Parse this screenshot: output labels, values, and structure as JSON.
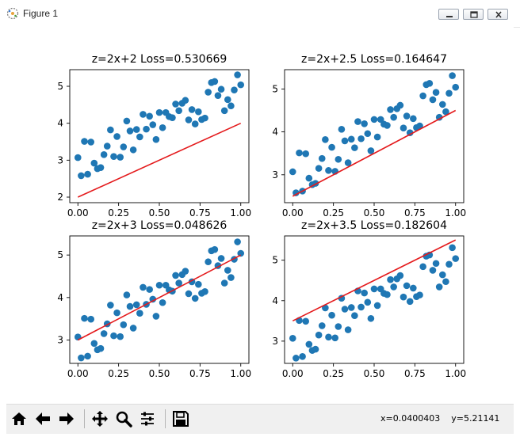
{
  "window": {
    "title": "Figure 1"
  },
  "toolbar": {
    "buttons": [
      {
        "name": "home-icon"
      },
      {
        "name": "back-arrow-icon"
      },
      {
        "name": "forward-arrow-icon"
      },
      {
        "name": "pan-icon"
      },
      {
        "name": "zoom-icon"
      },
      {
        "name": "subplots-config-icon"
      },
      {
        "name": "save-icon"
      }
    ],
    "x_readout": "x=0.0400403",
    "y_readout": "y=5.21141"
  },
  "colors": {
    "scatter": "#1f77b4",
    "line": "#e41a1c"
  },
  "chart_data": [
    {
      "type": "scatter",
      "title": "z=2x+2 Loss=0.530669",
      "xlabel": "",
      "ylabel": "",
      "xlim": [
        -0.05,
        1.05
      ],
      "ylim": [
        1.85,
        5.45
      ],
      "xticks": [
        "0.00",
        "0.25",
        "0.50",
        "0.75",
        "1.00"
      ],
      "yticks": [
        "2",
        "3",
        "4",
        "5"
      ],
      "x": [
        0.0,
        0.02,
        0.04,
        0.06,
        0.08,
        0.1,
        0.12,
        0.14,
        0.16,
        0.18,
        0.2,
        0.22,
        0.24,
        0.26,
        0.28,
        0.3,
        0.32,
        0.34,
        0.36,
        0.38,
        0.4,
        0.42,
        0.44,
        0.46,
        0.48,
        0.5,
        0.52,
        0.54,
        0.56,
        0.58,
        0.6,
        0.62,
        0.64,
        0.66,
        0.68,
        0.7,
        0.72,
        0.74,
        0.76,
        0.78,
        0.8,
        0.82,
        0.84,
        0.86,
        0.88,
        0.9,
        0.92,
        0.94,
        0.96,
        0.98,
        1.0
      ],
      "y": [
        3.07,
        2.58,
        3.51,
        2.62,
        3.49,
        2.92,
        2.77,
        2.8,
        3.15,
        3.38,
        3.82,
        3.1,
        3.64,
        3.08,
        3.36,
        4.06,
        3.79,
        3.28,
        3.83,
        3.63,
        4.24,
        3.84,
        4.19,
        3.96,
        3.56,
        4.29,
        3.88,
        4.29,
        4.18,
        4.15,
        4.52,
        4.34,
        4.54,
        4.62,
        4.09,
        4.37,
        3.98,
        4.31,
        4.1,
        4.14,
        4.84,
        5.1,
        5.13,
        4.75,
        4.92,
        4.34,
        4.64,
        4.47,
        4.9,
        5.31,
        5.04
      ],
      "line": {
        "name": "",
        "x": [
          0.0,
          1.0
        ],
        "y": [
          2.0,
          4.0
        ]
      }
    },
    {
      "type": "scatter",
      "title": "z=2x+2.5 Loss=0.164647",
      "xlabel": "",
      "ylabel": "",
      "xlim": [
        -0.05,
        1.05
      ],
      "ylim": [
        2.35,
        5.45
      ],
      "xticks": [
        "0.00",
        "0.25",
        "0.50",
        "0.75",
        "1.00"
      ],
      "yticks": [
        "3",
        "4",
        "5"
      ],
      "x": [
        0.0,
        0.02,
        0.04,
        0.06,
        0.08,
        0.1,
        0.12,
        0.14,
        0.16,
        0.18,
        0.2,
        0.22,
        0.24,
        0.26,
        0.28,
        0.3,
        0.32,
        0.34,
        0.36,
        0.38,
        0.4,
        0.42,
        0.44,
        0.46,
        0.48,
        0.5,
        0.52,
        0.54,
        0.56,
        0.58,
        0.6,
        0.62,
        0.64,
        0.66,
        0.68,
        0.7,
        0.72,
        0.74,
        0.76,
        0.78,
        0.8,
        0.82,
        0.84,
        0.86,
        0.88,
        0.9,
        0.92,
        0.94,
        0.96,
        0.98,
        1.0
      ],
      "y": [
        3.07,
        2.58,
        3.51,
        2.62,
        3.49,
        2.92,
        2.77,
        2.8,
        3.15,
        3.38,
        3.82,
        3.1,
        3.64,
        3.08,
        3.36,
        4.06,
        3.79,
        3.28,
        3.83,
        3.63,
        4.24,
        3.84,
        4.19,
        3.96,
        3.56,
        4.29,
        3.88,
        4.29,
        4.18,
        4.15,
        4.52,
        4.34,
        4.54,
        4.62,
        4.09,
        4.37,
        3.98,
        4.31,
        4.1,
        4.14,
        4.84,
        5.1,
        5.13,
        4.75,
        4.92,
        4.34,
        4.64,
        4.47,
        4.9,
        5.31,
        5.04
      ],
      "line": {
        "name": "",
        "x": [
          0.0,
          1.0
        ],
        "y": [
          2.5,
          4.5
        ]
      }
    },
    {
      "type": "scatter",
      "title": "z=2x+3 Loss=0.048626",
      "xlabel": "",
      "ylabel": "",
      "xlim": [
        -0.05,
        1.05
      ],
      "ylim": [
        2.45,
        5.45
      ],
      "xticks": [
        "0.00",
        "0.25",
        "0.50",
        "0.75",
        "1.00"
      ],
      "yticks": [
        "3",
        "4",
        "5"
      ],
      "x": [
        0.0,
        0.02,
        0.04,
        0.06,
        0.08,
        0.1,
        0.12,
        0.14,
        0.16,
        0.18,
        0.2,
        0.22,
        0.24,
        0.26,
        0.28,
        0.3,
        0.32,
        0.34,
        0.36,
        0.38,
        0.4,
        0.42,
        0.44,
        0.46,
        0.48,
        0.5,
        0.52,
        0.54,
        0.56,
        0.58,
        0.6,
        0.62,
        0.64,
        0.66,
        0.68,
        0.7,
        0.72,
        0.74,
        0.76,
        0.78,
        0.8,
        0.82,
        0.84,
        0.86,
        0.88,
        0.9,
        0.92,
        0.94,
        0.96,
        0.98,
        1.0
      ],
      "y": [
        3.07,
        2.58,
        3.51,
        2.62,
        3.49,
        2.92,
        2.77,
        2.8,
        3.15,
        3.38,
        3.82,
        3.1,
        3.64,
        3.08,
        3.36,
        4.06,
        3.79,
        3.28,
        3.83,
        3.63,
        4.24,
        3.84,
        4.19,
        3.96,
        3.56,
        4.29,
        3.88,
        4.29,
        4.18,
        4.15,
        4.52,
        4.34,
        4.54,
        4.62,
        4.09,
        4.37,
        3.98,
        4.31,
        4.1,
        4.14,
        4.84,
        5.1,
        5.13,
        4.75,
        4.92,
        4.34,
        4.64,
        4.47,
        4.9,
        5.31,
        5.04
      ],
      "line": {
        "name": "",
        "x": [
          0.0,
          1.0
        ],
        "y": [
          3.0,
          5.0
        ]
      }
    },
    {
      "type": "scatter",
      "title": "z=2x+3.5 Loss=0.182604",
      "xlabel": "",
      "ylabel": "",
      "xlim": [
        -0.05,
        1.05
      ],
      "ylim": [
        2.45,
        5.6
      ],
      "xticks": [
        "0.00",
        "0.25",
        "0.50",
        "0.75",
        "1.00"
      ],
      "yticks": [
        "3",
        "4",
        "5"
      ],
      "x": [
        0.0,
        0.02,
        0.04,
        0.06,
        0.08,
        0.1,
        0.12,
        0.14,
        0.16,
        0.18,
        0.2,
        0.22,
        0.24,
        0.26,
        0.28,
        0.3,
        0.32,
        0.34,
        0.36,
        0.38,
        0.4,
        0.42,
        0.44,
        0.46,
        0.48,
        0.5,
        0.52,
        0.54,
        0.56,
        0.58,
        0.6,
        0.62,
        0.64,
        0.66,
        0.68,
        0.7,
        0.72,
        0.74,
        0.76,
        0.78,
        0.8,
        0.82,
        0.84,
        0.86,
        0.88,
        0.9,
        0.92,
        0.94,
        0.96,
        0.98,
        1.0
      ],
      "y": [
        3.07,
        2.58,
        3.51,
        2.62,
        3.49,
        2.92,
        2.77,
        2.8,
        3.15,
        3.38,
        3.82,
        3.1,
        3.64,
        3.08,
        3.36,
        4.06,
        3.79,
        3.28,
        3.83,
        3.63,
        4.24,
        3.84,
        4.19,
        3.96,
        3.56,
        4.29,
        3.88,
        4.29,
        4.18,
        4.15,
        4.52,
        4.34,
        4.54,
        4.62,
        4.09,
        4.37,
        3.98,
        4.31,
        4.1,
        4.14,
        4.84,
        5.1,
        5.13,
        4.75,
        4.92,
        4.34,
        4.64,
        4.47,
        4.9,
        5.31,
        5.04
      ],
      "line": {
        "name": "",
        "x": [
          0.0,
          1.0
        ],
        "y": [
          3.5,
          5.5
        ]
      }
    }
  ]
}
